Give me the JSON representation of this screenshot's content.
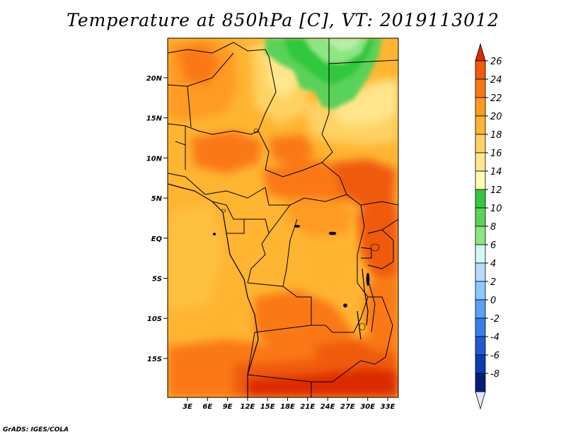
{
  "title": "Temperature at 850hPa [C], VT: 2019113012",
  "credit": "GrADS: IGES/COLA",
  "map": {
    "lat_labels": [
      "20N",
      "15N",
      "10N",
      "5N",
      "EQ",
      "5S",
      "10S",
      "15S"
    ],
    "lon_labels": [
      "3E",
      "6E",
      "9E",
      "12E",
      "15E",
      "18E",
      "21E",
      "24E",
      "27E",
      "30E",
      "33E"
    ],
    "region_colors": {
      "base": "#ffb432",
      "warm": "#ff9a20",
      "hot": "#fa7814",
      "hotter": "#f05a0a",
      "hottest": "#dc2a00",
      "cool": "#ffd264",
      "cooler": "#fff0a0",
      "green1": "#32c83c",
      "green2": "#5ad25a",
      "green3": "#8ce682",
      "green4": "#b4f0aa"
    }
  },
  "colorbar": {
    "labels": [
      "26",
      "24",
      "22",
      "20",
      "18",
      "16",
      "14",
      "12",
      "10",
      "8",
      "6",
      "4",
      "2",
      "0",
      "-2",
      "-4",
      "-6",
      "-8"
    ],
    "colors": [
      "#dc2a00",
      "#f05a0a",
      "#fa7814",
      "#ff9a20",
      "#ffb432",
      "#ffd264",
      "#ffe68c",
      "#fffab4",
      "#32c83c",
      "#5ad25a",
      "#8ce682",
      "#d2faf0",
      "#b4dcff",
      "#8cc8ff",
      "#5aa0f5",
      "#3c7ce6",
      "#1e5ad2",
      "#0a3cb4",
      "#001e78",
      "#e6e6ff"
    ]
  }
}
